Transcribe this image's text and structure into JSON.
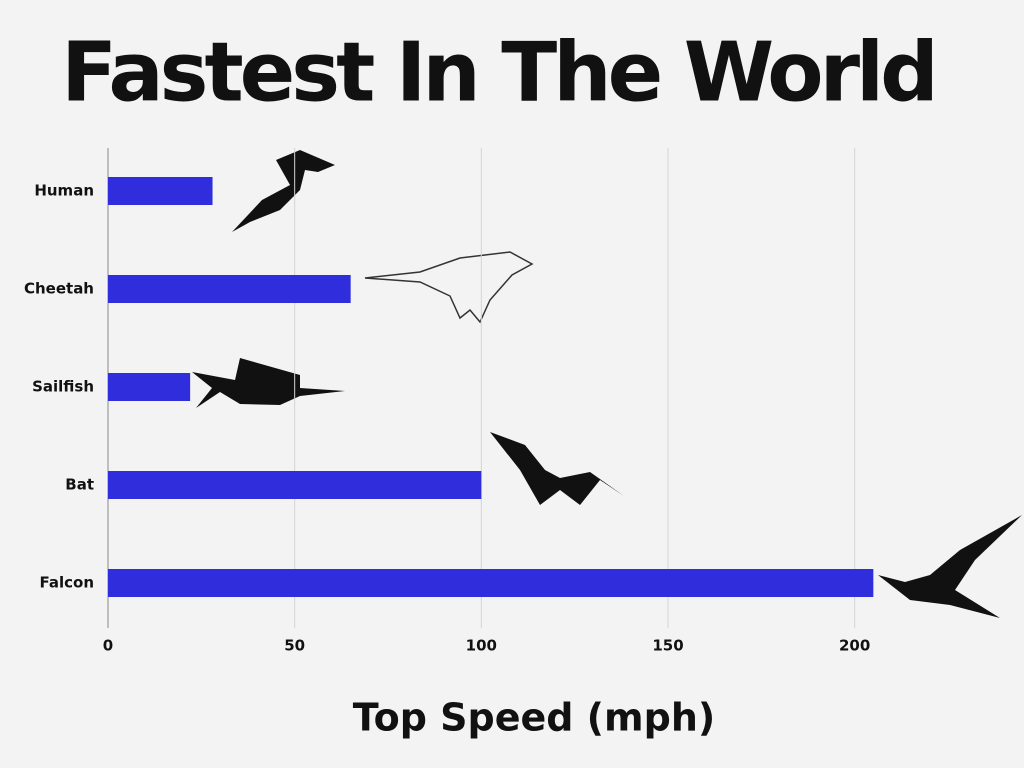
{
  "chart_data": {
    "type": "bar",
    "orientation": "horizontal",
    "title": "Fastest In The World",
    "x_label": "Top Speed (mph)",
    "categories": [
      "Human",
      "Cheetah",
      "Sailfish",
      "Bat",
      "Falcon"
    ],
    "values": [
      28,
      65,
      22,
      100,
      205
    ],
    "color": "#2f2ddc",
    "xlim": [
      0,
      240
    ],
    "xticks": [
      0,
      50,
      100,
      150,
      200
    ],
    "grid": true
  }
}
